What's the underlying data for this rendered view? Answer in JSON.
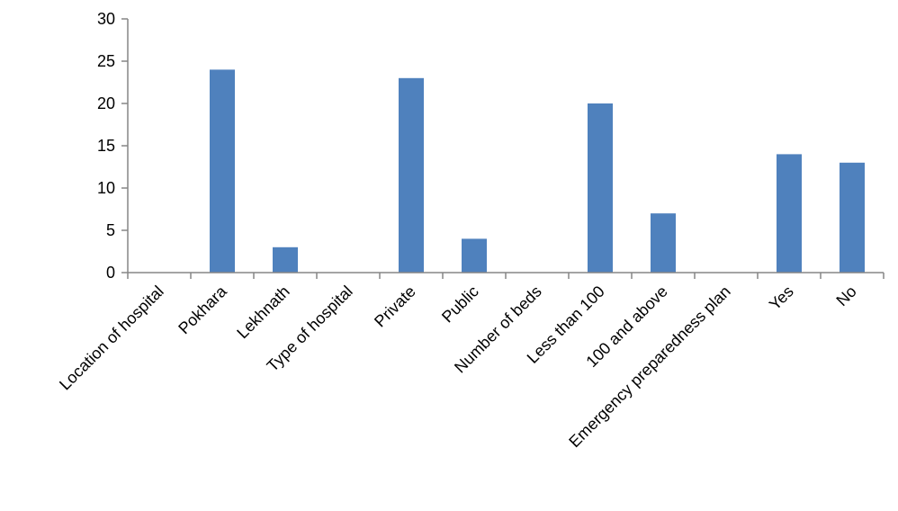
{
  "chart_data": {
    "type": "bar",
    "categories": [
      "Location of hospital",
      "Pokhara",
      "Lekhnath",
      "Type of hospital",
      "Private",
      "Public",
      "Number of beds",
      "Less than 100",
      "100 and above",
      "Emergency preparedness plan",
      "Yes",
      "No"
    ],
    "values": [
      null,
      24,
      3,
      null,
      23,
      4,
      null,
      20,
      7,
      null,
      14,
      13
    ],
    "ylim": [
      0,
      30
    ],
    "yticks": [
      0,
      5,
      10,
      15,
      20,
      25,
      30
    ],
    "grid": false,
    "legend": "none",
    "bar_color": "#4f81bd"
  }
}
